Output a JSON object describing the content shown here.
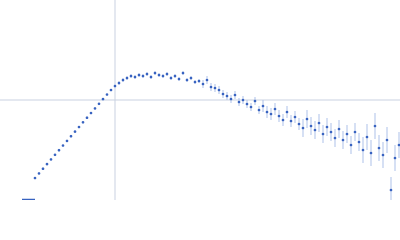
{
  "chart_data": {
    "type": "scatter",
    "xlim": [
      0,
      400
    ],
    "ylim": [
      0,
      200
    ],
    "xticks": [
      115
    ],
    "yticks": [
      100
    ],
    "grid": true,
    "tick_labels": false,
    "series": [
      {
        "color": "#3762c0",
        "error_color": "#adc0e8",
        "x": [
          35,
          39,
          43,
          47,
          51,
          55,
          59,
          63,
          67,
          71,
          75,
          79,
          83,
          87,
          91,
          95,
          99,
          103,
          107,
          111,
          115,
          119,
          123,
          127,
          131,
          135,
          139,
          143,
          147,
          151,
          155,
          159,
          163,
          167,
          171,
          175,
          179,
          183,
          187,
          191,
          195,
          199,
          203,
          207,
          211,
          215,
          219,
          223,
          227,
          231,
          235,
          239,
          243,
          247,
          251,
          255,
          259,
          263,
          267,
          271,
          275,
          279,
          283,
          287,
          291,
          295,
          299,
          303,
          307,
          311,
          315,
          319,
          323,
          327,
          331,
          335,
          339,
          343,
          347,
          351,
          355,
          359,
          363,
          367,
          371,
          375,
          379,
          383,
          387,
          391,
          395,
          399
        ],
        "values": [
          22,
          26.6,
          31.3,
          35.9,
          40.6,
          45.2,
          49.8,
          54.5,
          59.1,
          63.8,
          68.4,
          73,
          77.7,
          82.3,
          87,
          91.6,
          96.2,
          100.9,
          105.5,
          110,
          114,
          117,
          120,
          122,
          124,
          123,
          125,
          124,
          126,
          123,
          127,
          125,
          124,
          126,
          122,
          124,
          121,
          127,
          120,
          122,
          118,
          119,
          116,
          120,
          113,
          112,
          110,
          106,
          104,
          101,
          105,
          98,
          100,
          96,
          93,
          99,
          90,
          94,
          88,
          86,
          91,
          84,
          80,
          88,
          79,
          83,
          76,
          72,
          81,
          74,
          70,
          77,
          66,
          73,
          68,
          62,
          71,
          60,
          66,
          55,
          68,
          58,
          50,
          63,
          47,
          74,
          52,
          45,
          60,
          10,
          42,
          55
        ],
        "errors": [
          0.5,
          0.5,
          0.5,
          0.5,
          0.5,
          0.5,
          0.5,
          0.5,
          0.5,
          0.5,
          0.5,
          0.5,
          0.5,
          0.5,
          0.5,
          0.5,
          0.5,
          0.5,
          0.5,
          0.5,
          2,
          2,
          2,
          2,
          2,
          2,
          2,
          2,
          2,
          2,
          2,
          2,
          2,
          2,
          2,
          2,
          2,
          2,
          2,
          2,
          2,
          2,
          4,
          4,
          4,
          4,
          4,
          4,
          4,
          4,
          4,
          4,
          4,
          4,
          4,
          4,
          4,
          6,
          6,
          6,
          6,
          6,
          6,
          6,
          6,
          6,
          6,
          9,
          9,
          9,
          9,
          9,
          9,
          9,
          9,
          9,
          9,
          9,
          9,
          9,
          9,
          9,
          13,
          13,
          13,
          13,
          13,
          13,
          13,
          13,
          13,
          13
        ]
      }
    ]
  }
}
